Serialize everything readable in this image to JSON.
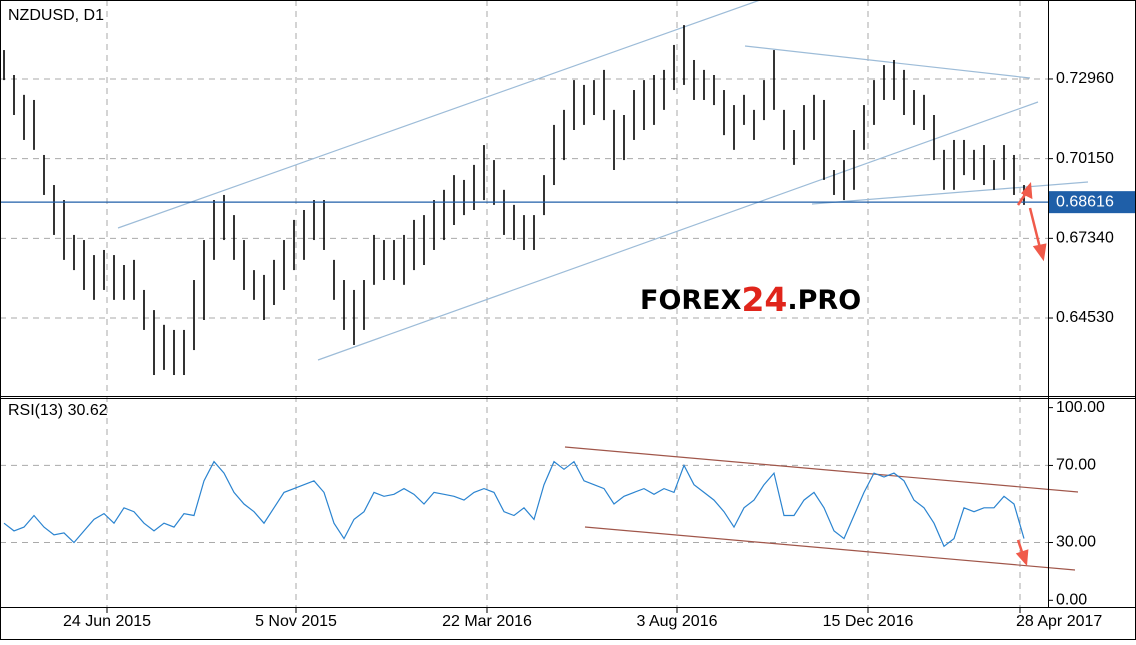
{
  "chart_data": {
    "type": "ohlc",
    "title": "NZDUSD, D1",
    "xlim": [
      -0.4,
      104.4
    ],
    "xticks": [
      {
        "value": 10.3,
        "label": "24 Jun 2015"
      },
      {
        "value": 29.2,
        "label": "5 Nov 2015"
      },
      {
        "value": 48.3,
        "label": "22 Mar 2016"
      },
      {
        "value": 67.3,
        "label": "3 Aug 2016"
      },
      {
        "value": 86.4,
        "label": "15 Dec 2016"
      },
      {
        "value": 101.6,
        "label": "28 Apr 2017"
      }
    ],
    "ylim": [
      0.6178,
      0.75745
    ],
    "yticks": [
      {
        "value": 0.7296,
        "label": "0.72960"
      },
      {
        "value": 0.7015,
        "label": "0.70150"
      },
      {
        "value": 0.6734,
        "label": "0.67340"
      },
      {
        "value": 0.6453,
        "label": "0.64530"
      }
    ],
    "grid": true,
    "color": "#000000",
    "high": [
      0.7398,
      0.731,
      0.724,
      0.7222,
      0.7028,
      0.6922,
      0.6869,
      0.6746,
      0.6728,
      0.6675,
      0.6693,
      0.6675,
      0.664,
      0.6658,
      0.6552,
      0.6481,
      0.6429,
      0.6411,
      0.6411,
      0.6587,
      0.6728,
      0.6869,
      0.6887,
      0.6816,
      0.6728,
      0.6622,
      0.6605,
      0.6658,
      0.6728,
      0.6799,
      0.6834,
      0.6869,
      0.6869,
      0.6658,
      0.6587,
      0.6552,
      0.6587,
      0.6746,
      0.6728,
      0.6728,
      0.6746,
      0.6799,
      0.6816,
      0.6869,
      0.6905,
      0.6957,
      0.694,
      0.6993,
      0.7063,
      0.701,
      0.6905,
      0.6852,
      0.6816,
      0.6816,
      0.6957,
      0.7134,
      0.7187,
      0.7292,
      0.7275,
      0.7292,
      0.7328,
      0.7187,
      0.7169,
      0.7257,
      0.7292,
      0.731,
      0.7328,
      0.7416,
      0.7486,
      0.7363,
      0.7328,
      0.731,
      0.7257,
      0.7204,
      0.724,
      0.7187,
      0.7292,
      0.7398,
      0.7187,
      0.7116,
      0.7204,
      0.724,
      0.7222,
      0.6975,
      0.701,
      0.7116,
      0.7204,
      0.7292,
      0.7345,
      0.7363,
      0.7328,
      0.7257,
      0.724,
      0.7169,
      0.7046,
      0.7081,
      0.7081,
      0.7046,
      0.7063,
      0.701,
      0.7063,
      0.7028,
      0.6922
    ],
    "low": [
      0.7292,
      0.7169,
      0.7081,
      0.7046,
      0.6887,
      0.6746,
      0.6658,
      0.6622,
      0.6552,
      0.6517,
      0.6552,
      0.6517,
      0.6517,
      0.6517,
      0.6411,
      0.6252,
      0.627,
      0.6252,
      0.6252,
      0.634,
      0.6446,
      0.6658,
      0.6728,
      0.6658,
      0.6552,
      0.6517,
      0.6446,
      0.6499,
      0.6552,
      0.6622,
      0.6658,
      0.6728,
      0.6693,
      0.6517,
      0.6411,
      0.6358,
      0.6411,
      0.657,
      0.6587,
      0.6587,
      0.657,
      0.6622,
      0.664,
      0.6693,
      0.6728,
      0.6781,
      0.6816,
      0.6834,
      0.6869,
      0.6852,
      0.6746,
      0.6728,
      0.6693,
      0.6693,
      0.6816,
      0.6922,
      0.701,
      0.7116,
      0.7134,
      0.7169,
      0.7151,
      0.6975,
      0.701,
      0.7081,
      0.7116,
      0.7134,
      0.7187,
      0.7257,
      0.7275,
      0.7222,
      0.7222,
      0.7204,
      0.7098,
      0.7046,
      0.7134,
      0.7081,
      0.7151,
      0.7187,
      0.7046,
      0.6993,
      0.7046,
      0.7081,
      0.694,
      0.6887,
      0.6869,
      0.6905,
      0.7046,
      0.7134,
      0.7222,
      0.7222,
      0.7169,
      0.7134,
      0.7116,
      0.701,
      0.6905,
      0.6905,
      0.6957,
      0.694,
      0.6922,
      0.6905,
      0.694,
      0.6887,
      0.6852
    ],
    "current_price": {
      "value": 0.68616,
      "label": "0.68616"
    },
    "current_price_color": "#1f5fa8",
    "watermark": [
      "FOREX",
      "24",
      ".PRO"
    ],
    "rsi": {
      "title": "RSI(13) 30.62",
      "color": "#2b84d0",
      "ylim": [
        -4,
        105
      ],
      "yticks": [
        {
          "value": 100,
          "label": "100.00"
        },
        {
          "value": 70,
          "label": "70.00"
        },
        {
          "value": 30,
          "label": "30.00"
        },
        {
          "value": 0,
          "label": "0.00"
        }
      ],
      "values": [
        40,
        36,
        38,
        44,
        38,
        34,
        35,
        30,
        36,
        42,
        45,
        40,
        48,
        46,
        40,
        36,
        40,
        38,
        45,
        44,
        62,
        72,
        66,
        56,
        50,
        46,
        40,
        48,
        56,
        58,
        60,
        62,
        56,
        40,
        32,
        42,
        46,
        56,
        54,
        55,
        58,
        55,
        50,
        56,
        55,
        54,
        52,
        56,
        58,
        56,
        46,
        44,
        48,
        42,
        60,
        72,
        68,
        72,
        62,
        60,
        58,
        50,
        54,
        56,
        58,
        55,
        58,
        56,
        70,
        60,
        56,
        52,
        46,
        38,
        48,
        52,
        60,
        66,
        44,
        44,
        52,
        56,
        48,
        36,
        32,
        44,
        56,
        66,
        64,
        66,
        62,
        52,
        48,
        40,
        28,
        32,
        48,
        46,
        48,
        48,
        54,
        50,
        32
      ]
    }
  }
}
